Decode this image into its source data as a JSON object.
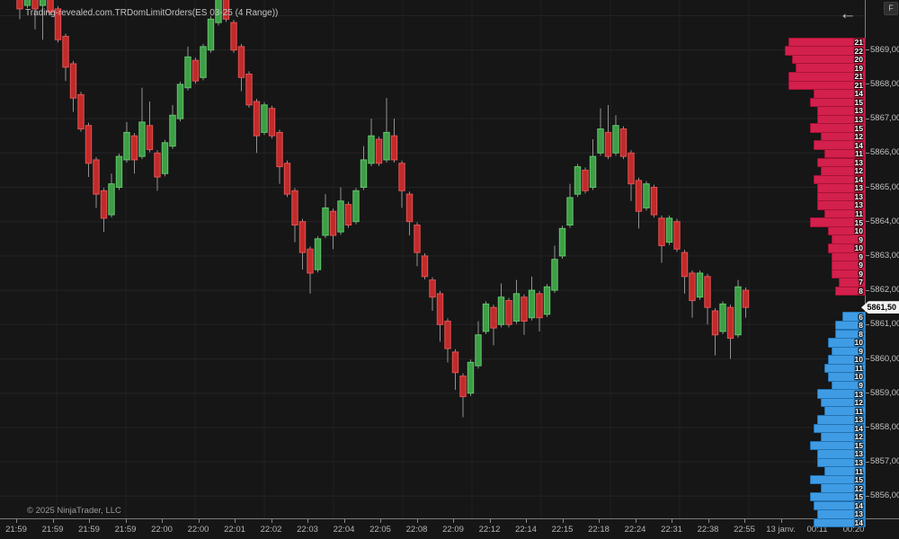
{
  "window": {
    "title": "Trading-revealed.com.TRDomLimitOrders(ES 03-25 (4 Range))",
    "f_button_label": "F",
    "back_arrow_icon": "←",
    "copyright": "© 2025 NinjaTrader, LLC"
  },
  "price_marker": {
    "value": "5861,50"
  },
  "chart_data": {
    "type": "candlestick",
    "title": "Trading-revealed.com.TRDomLimitOrders(ES 03-25 (4 Range))",
    "grid": "on",
    "price_axis": {
      "labels": [
        "5869,00",
        "5868,00",
        "5867,00",
        "5866,00",
        "5865,00",
        "5864,00",
        "5863,00",
        "5862,00",
        "5861,00",
        "5860,00",
        "5859,00",
        "5858,00",
        "5857,00",
        "5856,00"
      ],
      "values": [
        5869,
        5868,
        5867,
        5866,
        5865,
        5864,
        5863,
        5862,
        5861,
        5860,
        5859,
        5858,
        5857,
        5856
      ],
      "visible_range": [
        5855.2,
        5870.5
      ]
    },
    "time_axis": {
      "labels": [
        "21:59",
        "21:59",
        "21:59",
        "21:59",
        "22:00",
        "22:00",
        "22:01",
        "22:02",
        "22:03",
        "22:04",
        "22:05",
        "22:08",
        "22:09",
        "22:12",
        "22:14",
        "22:15",
        "22:18",
        "22:24",
        "22:31",
        "22:38",
        "22:55",
        "13 janv.",
        "00:11",
        "00:20"
      ]
    },
    "candles_format": [
      "open",
      "close",
      "high_or_null",
      "low_or_null"
    ],
    "candles": [
      [
        5871.0,
        5870.2,
        null,
        5869.9
      ],
      [
        5870.3,
        5871.0,
        null,
        null
      ],
      [
        5870.9,
        5870.2,
        null,
        5869.6
      ],
      [
        5870.3,
        5871.0,
        null,
        5869.3
      ],
      [
        5870.9,
        5870.1,
        null,
        null
      ],
      [
        5870.2,
        5869.3,
        null,
        null
      ],
      [
        5869.4,
        5868.5,
        null,
        5868.1
      ],
      [
        5868.6,
        5867.6,
        null,
        5867.2
      ],
      [
        5867.7,
        5866.7,
        null,
        null
      ],
      [
        5866.8,
        5865.7,
        null,
        5865.3
      ],
      [
        5865.8,
        5864.8,
        null,
        5864.4
      ],
      [
        5864.9,
        5864.1,
        null,
        5863.7
      ],
      [
        5864.2,
        5865.1,
        5865.4,
        null
      ],
      [
        5865.0,
        5865.9,
        null,
        null
      ],
      [
        5865.8,
        5866.6,
        5866.9,
        null
      ],
      [
        5866.5,
        5865.8,
        null,
        5865.4
      ],
      [
        5865.9,
        5866.9,
        5867.9,
        null
      ],
      [
        5866.8,
        5866.1,
        5867.5,
        null
      ],
      [
        5866.0,
        5865.3,
        null,
        5864.9
      ],
      [
        5865.4,
        5866.3,
        null,
        null
      ],
      [
        5866.2,
        5867.1,
        5867.4,
        null
      ],
      [
        5867.0,
        5868.0,
        null,
        null
      ],
      [
        5867.9,
        5868.8,
        5869.1,
        null
      ],
      [
        5868.7,
        5868.1,
        null,
        null
      ],
      [
        5868.2,
        5869.1,
        null,
        null
      ],
      [
        5869.0,
        5869.9,
        null,
        null
      ],
      [
        5869.8,
        5870.7,
        5871.5,
        null
      ],
      [
        5870.6,
        5869.9,
        5871.4,
        null
      ],
      [
        5869.8,
        5869.0,
        null,
        null
      ],
      [
        5869.1,
        5868.2,
        null,
        5867.8
      ],
      [
        5868.3,
        5867.4,
        null,
        null
      ],
      [
        5867.5,
        5866.5,
        null,
        5866.0
      ],
      [
        5866.6,
        5867.4,
        null,
        null
      ],
      [
        5867.3,
        5866.5,
        null,
        null
      ],
      [
        5866.6,
        5865.6,
        null,
        5865.1
      ],
      [
        5865.7,
        5864.8,
        null,
        null
      ],
      [
        5864.9,
        5863.9,
        null,
        5863.4
      ],
      [
        5864.0,
        5863.1,
        null,
        5862.6
      ],
      [
        5863.2,
        5862.5,
        null,
        5861.9
      ],
      [
        5862.6,
        5863.5,
        null,
        null
      ],
      [
        5863.6,
        5864.4,
        5864.8,
        null
      ],
      [
        5864.3,
        5863.6,
        null,
        5863.2
      ],
      [
        5863.7,
        5864.6,
        5865.0,
        null
      ],
      [
        5864.5,
        5863.9,
        null,
        null
      ],
      [
        5864.0,
        5864.9,
        null,
        null
      ],
      [
        5865.0,
        5865.8,
        5866.2,
        null
      ],
      [
        5865.7,
        5866.5,
        5867.0,
        null
      ],
      [
        5866.4,
        5865.7,
        null,
        null
      ],
      [
        5865.8,
        5866.6,
        5867.6,
        null
      ],
      [
        5866.5,
        5865.8,
        5867.0,
        null
      ],
      [
        5865.7,
        5864.9,
        null,
        5864.4
      ],
      [
        5864.8,
        5864.0,
        null,
        5863.6
      ],
      [
        5863.9,
        5863.1,
        null,
        5862.7
      ],
      [
        5863.0,
        5862.4,
        null,
        null
      ],
      [
        5862.3,
        5861.8,
        null,
        5861.4
      ],
      [
        5861.9,
        5861.0,
        null,
        5860.5
      ],
      [
        5861.1,
        5860.3,
        null,
        5859.9
      ],
      [
        5860.2,
        5859.6,
        null,
        5859.1
      ],
      [
        5859.5,
        5858.9,
        null,
        5858.3
      ],
      [
        5859.0,
        5859.9,
        null,
        null
      ],
      [
        5859.8,
        5860.7,
        5861.1,
        null
      ],
      [
        5860.8,
        5861.6,
        null,
        null
      ],
      [
        5861.5,
        5860.9,
        null,
        5860.4
      ],
      [
        5861.0,
        5861.8,
        5862.2,
        null
      ],
      [
        5861.7,
        5861.0,
        null,
        null
      ],
      [
        5861.1,
        5861.9,
        5862.3,
        null
      ],
      [
        5861.8,
        5861.1,
        null,
        5860.7
      ],
      [
        5861.2,
        5862.0,
        5862.4,
        null
      ],
      [
        5861.9,
        5861.2,
        null,
        5860.8
      ],
      [
        5861.3,
        5862.1,
        null,
        null
      ],
      [
        5862.0,
        5862.9,
        5863.3,
        null
      ],
      [
        5863.0,
        5863.8,
        null,
        null
      ],
      [
        5863.9,
        5864.7,
        5865.1,
        null
      ],
      [
        5864.8,
        5865.6,
        null,
        null
      ],
      [
        5865.5,
        5864.9,
        null,
        null
      ],
      [
        5865.0,
        5865.9,
        5866.4,
        null
      ],
      [
        5866.0,
        5866.7,
        5867.3,
        null
      ],
      [
        5866.6,
        5865.9,
        5867.4,
        null
      ],
      [
        5866.0,
        5866.8,
        5867.1,
        null
      ],
      [
        5866.7,
        5865.9,
        null,
        null
      ],
      [
        5866.0,
        5865.1,
        null,
        5864.6
      ],
      [
        5865.2,
        5864.3,
        null,
        5863.8
      ],
      [
        5864.4,
        5865.1,
        null,
        null
      ],
      [
        5865.0,
        5864.2,
        null,
        null
      ],
      [
        5864.1,
        5863.3,
        null,
        5862.8
      ],
      [
        5863.4,
        5864.1,
        null,
        null
      ],
      [
        5864.0,
        5863.2,
        null,
        null
      ],
      [
        5863.1,
        5862.4,
        null,
        5861.9
      ],
      [
        5862.5,
        5861.7,
        null,
        5861.2
      ],
      [
        5861.8,
        5862.5,
        null,
        null
      ],
      [
        5862.4,
        5861.5,
        null,
        5861.0
      ],
      [
        5861.4,
        5860.7,
        null,
        5860.1
      ],
      [
        5860.8,
        5861.6,
        null,
        null
      ],
      [
        5861.5,
        5860.6,
        null,
        5860.0
      ],
      [
        5860.7,
        5862.1,
        5862.3,
        null
      ],
      [
        5862.0,
        5861.5,
        null,
        5861.2
      ]
    ],
    "dom": {
      "last_price": 5861.5,
      "asks": {
        "start_price": 5869.25,
        "step": -0.25,
        "sizes": [
          21,
          22,
          20,
          19,
          21,
          21,
          14,
          15,
          13,
          13,
          15,
          12,
          14,
          11,
          13,
          12,
          14,
          13,
          13,
          13,
          11,
          15,
          10,
          9,
          10,
          9,
          9,
          9,
          7,
          8
        ]
      },
      "bids": {
        "start_price": 5861.25,
        "step": -0.25,
        "sizes": [
          6,
          8,
          8,
          10,
          9,
          10,
          11,
          10,
          9,
          13,
          12,
          11,
          13,
          14,
          12,
          15,
          13,
          13,
          11,
          15,
          12,
          15,
          14,
          13,
          14
        ]
      }
    },
    "colors": {
      "background": "#161616",
      "candle_up_fill": "#3d9e46",
      "candle_up_border": "#63c56b",
      "candle_down_fill": "#c22a2a",
      "candle_down_border": "#e25353",
      "wick": "#919191",
      "ask_bar": "#d3204c",
      "bid_bar": "#3f9ce4",
      "grid": "#242424",
      "axis": "#7d7d7d",
      "axis_text": "#c0c0c0",
      "price_marker_bg": "#f4f4f4",
      "price_marker_text": "#000000"
    }
  }
}
